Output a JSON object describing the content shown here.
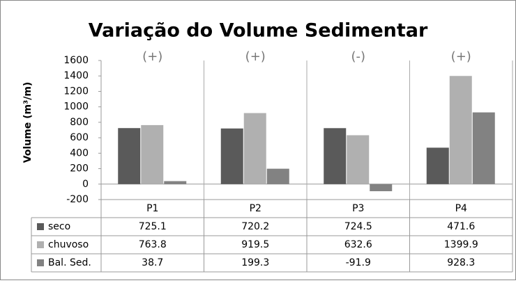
{
  "chart_data": {
    "type": "bar",
    "title": "Variação do Volume Sedimentar",
    "y_label": "Volume (m³/m)",
    "categories": [
      "P1",
      "P2",
      "P3",
      "P4"
    ],
    "annotations": [
      "(+)",
      "(+)",
      "(-)",
      "(+)"
    ],
    "series": [
      {
        "name": "seco",
        "color": "#5a5a5a",
        "values": [
          725.1,
          720.2,
          724.5,
          471.6
        ]
      },
      {
        "name": "chuvoso",
        "color": "#b0b0b0",
        "values": [
          763.8,
          919.5,
          632.6,
          1399.9
        ]
      },
      {
        "name": "Bal. Sed.",
        "color": "#828282",
        "values": [
          38.7,
          199.3,
          -91.9,
          928.3
        ]
      }
    ],
    "ylim": [
      -200,
      1600
    ],
    "yticks": [
      -200,
      0,
      200,
      400,
      600,
      800,
      1000,
      1200,
      1400,
      1600
    ],
    "grid": false,
    "data_table": true
  }
}
